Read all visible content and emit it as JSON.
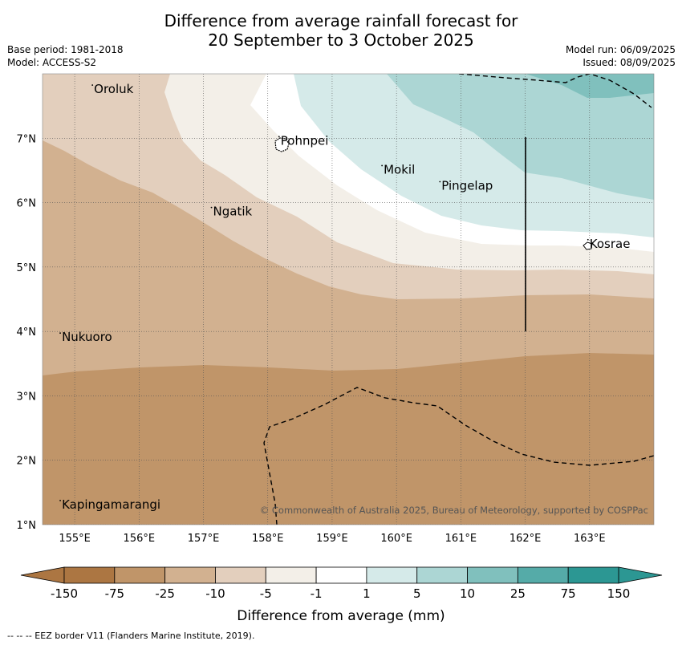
{
  "title": {
    "line1": "Difference from average rainfall forecast for",
    "line2": "20 September to 3 October 2025"
  },
  "meta": {
    "base_period": "Base period: 1981-2018",
    "model": "Model: ACCESS-S2",
    "model_run": "Model run: 06/09/2025",
    "issued": "Issued: 08/09/2025"
  },
  "map": {
    "lon_range": [
      154.5,
      164.0
    ],
    "lat_range": [
      1.0,
      8.0
    ],
    "lon_ticks": [
      155,
      156,
      157,
      158,
      159,
      160,
      161,
      162,
      163
    ],
    "lon_tick_labels": [
      "155°E",
      "156°E",
      "157°E",
      "158°E",
      "159°E",
      "160°E",
      "161°E",
      "162°E",
      "163°E"
    ],
    "lat_ticks": [
      1,
      2,
      3,
      4,
      5,
      6,
      7
    ],
    "lat_tick_labels": [
      "1°N",
      "2°N",
      "3°N",
      "4°N",
      "5°N",
      "6°N",
      "7°N"
    ],
    "places": [
      {
        "name": "Oroluk",
        "lon": 155.3,
        "lat": 7.7
      },
      {
        "name": "Pohnpei",
        "lon": 158.2,
        "lat": 6.9
      },
      {
        "name": "Mokil",
        "lon": 159.8,
        "lat": 6.45
      },
      {
        "name": "Pingelap",
        "lon": 160.7,
        "lat": 6.2
      },
      {
        "name": "Ngatik",
        "lon": 157.15,
        "lat": 5.8
      },
      {
        "name": "Kosrae",
        "lon": 163.0,
        "lat": 5.3
      },
      {
        "name": "Nukuoro",
        "lon": 154.8,
        "lat": 3.85
      },
      {
        "name": "Kapingamarangi",
        "lon": 154.8,
        "lat": 1.25
      }
    ],
    "credit": "© Commonwealth of Australia 2025, Bureau of Meteorology, supported by COSPPac",
    "eez_line_style": "dashed",
    "boundary_line_lon": 162.0,
    "boundary_line_lat": [
      4.0,
      7.0
    ]
  },
  "legend": {
    "label": "Difference from average (mm)",
    "tick_labels": [
      "-150",
      "-75",
      "-25",
      "-10",
      "-5",
      "-1",
      "1",
      "5",
      "10",
      "25",
      "75",
      "150"
    ],
    "colors": [
      "#ac7642",
      "#c09569",
      "#d2b190",
      "#e3cfbd",
      "#f3efe8",
      "#ffffff",
      "#d5eae9",
      "#acd6d4",
      "#80c0bd",
      "#55aba8",
      "#2c9793"
    ],
    "extend_low_color": "#ac7642",
    "extend_high_color": "#2c9793"
  },
  "footer": {
    "eez_note": "--  --  -- EEZ border V11 (Flanders Marine Institute, 2019)."
  }
}
